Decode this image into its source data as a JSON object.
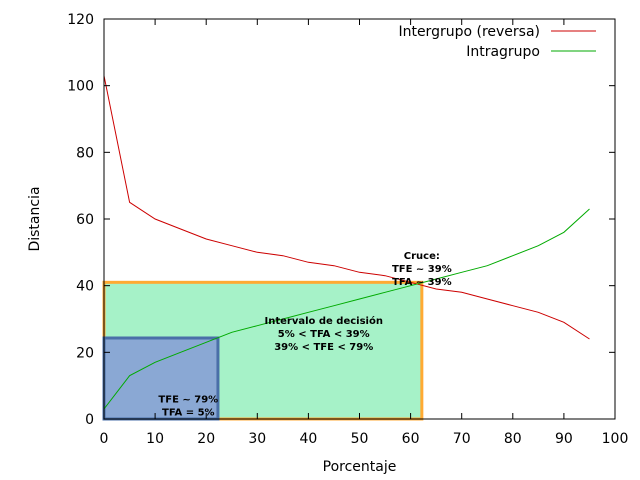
{
  "chart_data": {
    "type": "line",
    "xlabel": "Porcentaje",
    "ylabel": "Distancia",
    "xlim": [
      0,
      100
    ],
    "ylim": [
      0,
      120
    ],
    "xticks": [
      0,
      10,
      20,
      30,
      40,
      50,
      60,
      70,
      80,
      90,
      100
    ],
    "yticks": [
      0,
      20,
      40,
      60,
      80,
      100,
      120
    ],
    "grid": false,
    "legend_position": "top-right",
    "series": [
      {
        "name": "Intergrupo (reversa)",
        "color": "#cc0000",
        "x": [
          0,
          5,
          10,
          15,
          20,
          25,
          30,
          35,
          40,
          45,
          50,
          55,
          60,
          65,
          70,
          75,
          80,
          85,
          90,
          95
        ],
        "y": [
          103,
          65,
          60,
          57,
          54,
          52,
          50,
          49,
          47,
          46,
          44,
          43,
          41,
          39,
          38,
          36,
          34,
          32,
          29,
          24
        ]
      },
      {
        "name": "Intragrupo",
        "color": "#00aa00",
        "x": [
          0,
          5,
          10,
          15,
          20,
          25,
          30,
          35,
          40,
          45,
          50,
          55,
          60,
          65,
          70,
          75,
          80,
          85,
          90,
          95
        ],
        "y": [
          3,
          13,
          17,
          20,
          23,
          26,
          28,
          30,
          32,
          34,
          36,
          38,
          40,
          42,
          44,
          46,
          49,
          52,
          56,
          63
        ]
      }
    ],
    "regions": [
      {
        "x0": 0,
        "x1": 62.2,
        "y0": 0,
        "y1": 41,
        "fill": "#a6f2c8",
        "stroke": "#ffaa33"
      },
      {
        "x0": 0,
        "x1": 22.3,
        "y0": 0,
        "y1": 24.3,
        "fill": "#8aa8d4",
        "stroke": "#4a6fa8"
      }
    ],
    "annotations": [
      {
        "x": 62.2,
        "y": 48,
        "lines": [
          "Cruce:",
          "TFE ~ 39%",
          "TFA ~ 39%"
        ]
      },
      {
        "x": 43,
        "y": 28.5,
        "lines": [
          "Intervalo de decisión",
          "5% < TFA < 39%",
          "39% < TFE < 79%"
        ]
      },
      {
        "x": 16.5,
        "y": 5,
        "lines": [
          "TFE ~ 79%",
          "TFA = 5%"
        ]
      }
    ]
  }
}
